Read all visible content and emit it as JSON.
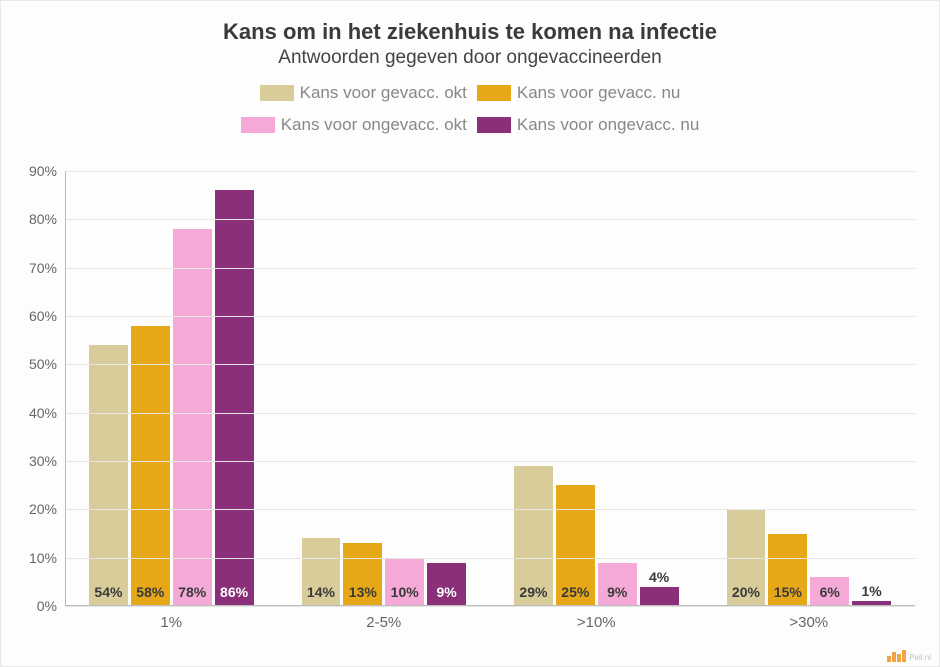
{
  "chart": {
    "type": "bar-grouped",
    "title": "Kans om in het ziekenhuis te komen na infectie",
    "title_fontsize": 22,
    "subtitle": "Antwoorden gegeven door ongevaccineerden",
    "subtitle_fontsize": 19,
    "background_color": "#fdfdfd",
    "grid_color": "#e5e5e3",
    "axis_color": "#bcbcbc",
    "text_color": "#666666",
    "series": [
      {
        "label": "Kans voor gevacc. okt",
        "color": "#d7cc9a",
        "label_text_color": "#3a3a3a"
      },
      {
        "label": "Kans voor gevacc. nu",
        "color": "#e6a817",
        "label_text_color": "#3a3a3a"
      },
      {
        "label": "Kans voor ongevacc. okt",
        "color": "#f5a9d6",
        "label_text_color": "#3a3a3a"
      },
      {
        "label": "Kans voor ongevacc. nu",
        "color": "#8b2f7a",
        "label_text_color": "#ffffff"
      }
    ],
    "legend_text_color": "#888888",
    "legend_fontsize": 17,
    "categories": [
      "1%",
      "2-5%",
      ">10%",
      ">30%"
    ],
    "values": [
      [
        54,
        58,
        78,
        86
      ],
      [
        14,
        13,
        10,
        9
      ],
      [
        29,
        25,
        9,
        4
      ],
      [
        20,
        15,
        6,
        1
      ]
    ],
    "ylim": [
      0,
      90
    ],
    "ytick_step": 10,
    "y_suffix": "%",
    "bar_label_fontsize": 14,
    "x_label_fontsize": 15
  },
  "watermark": "Peil.nl"
}
